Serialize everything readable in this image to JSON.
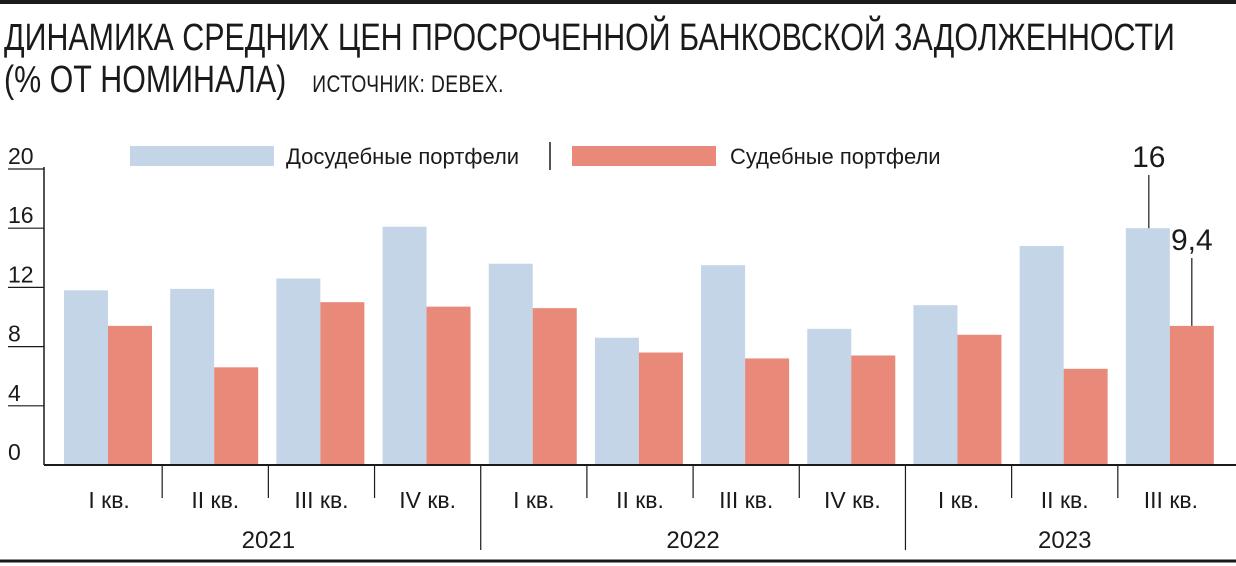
{
  "title": "ДИНАМИКА СРЕДНИХ ЦЕН ПРОСРОЧЕННОЙ БАНКОВСКОЙ ЗАДОЛЖЕННОСТИ",
  "unit": "(% ОТ НОМИНАЛА)",
  "source": "ИСТОЧНИК: DEBEX.",
  "colors": {
    "pre_court": "#c3d5e6",
    "court": "#e8897a",
    "axis": "#1a1a1a"
  },
  "chart_data": {
    "type": "bar",
    "categories": [
      "I кв.",
      "II кв.",
      "III кв.",
      "IV кв.",
      "I кв.",
      "II кв.",
      "III кв.",
      "IV кв.",
      "I кв.",
      "II кв.",
      "III кв."
    ],
    "groups": [
      {
        "label": "2021",
        "count": 4
      },
      {
        "label": "2022",
        "count": 4
      },
      {
        "label": "2023",
        "count": 3
      }
    ],
    "series": [
      {
        "name": "Досудебные портфели",
        "values": [
          11.8,
          11.9,
          12.6,
          16.1,
          13.6,
          8.6,
          13.5,
          9.2,
          10.8,
          14.8,
          16
        ]
      },
      {
        "name": "Судебные портфели",
        "values": [
          9.4,
          6.6,
          11.0,
          10.7,
          10.6,
          7.6,
          7.2,
          7.4,
          8.8,
          6.5,
          9.4
        ]
      }
    ],
    "ylim": [
      0,
      20
    ],
    "yticks": [
      "0",
      "4",
      "8",
      "12",
      "16",
      "20"
    ],
    "annotations": [
      {
        "series": 0,
        "index": 10,
        "text": "16"
      },
      {
        "series": 1,
        "index": 10,
        "text": "9,4"
      }
    ],
    "legend": "top",
    "grid": false
  }
}
